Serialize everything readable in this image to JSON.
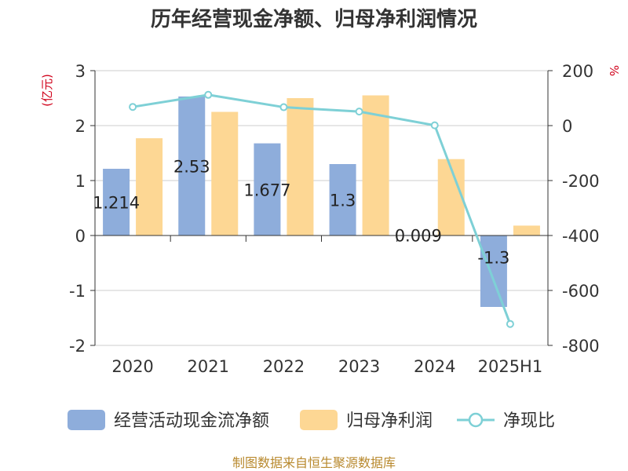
{
  "colors": {
    "cashflow": "#8EADDB",
    "profit": "#FDD794",
    "ratio": "#7ED0D6",
    "unit": "#D0021B",
    "source": "#B8892E",
    "axis": "#333333",
    "grid": "#CCCCCC"
  },
  "chart_data": {
    "type": "bar",
    "title": "历年经营现金净额、归母净利润情况",
    "categories": [
      "2020",
      "2021",
      "2022",
      "2023",
      "2024",
      "2025H1"
    ],
    "y_left_unit": "(亿元)",
    "y_right_unit": "%",
    "y_left": {
      "min": -2,
      "max": 3,
      "ticks": [
        "3",
        "2",
        "1",
        "0",
        "-1",
        "-2"
      ]
    },
    "y_right": {
      "min": -800,
      "max": 200,
      "ticks": [
        "200",
        "0",
        "-200",
        "-400",
        "-600",
        "-800"
      ]
    },
    "series": [
      {
        "name": "经营活动现金流净额",
        "type": "bar",
        "axis": "left",
        "values": [
          1.214,
          2.53,
          1.677,
          1.3,
          0.009,
          -1.3
        ],
        "labels": [
          "1.214",
          "2.53",
          "1.677",
          "1.3",
          "0.009",
          "-1.3"
        ]
      },
      {
        "name": "归母净利润",
        "type": "bar",
        "axis": "left",
        "values": [
          1.77,
          2.25,
          2.5,
          2.55,
          1.39,
          0.18
        ]
      },
      {
        "name": "净现比",
        "type": "line",
        "axis": "right",
        "values": [
          68,
          112,
          67,
          51,
          1,
          -722
        ]
      }
    ],
    "grid": true,
    "legend_position": "bottom"
  },
  "source": "制图数据来自恒生聚源数据库"
}
